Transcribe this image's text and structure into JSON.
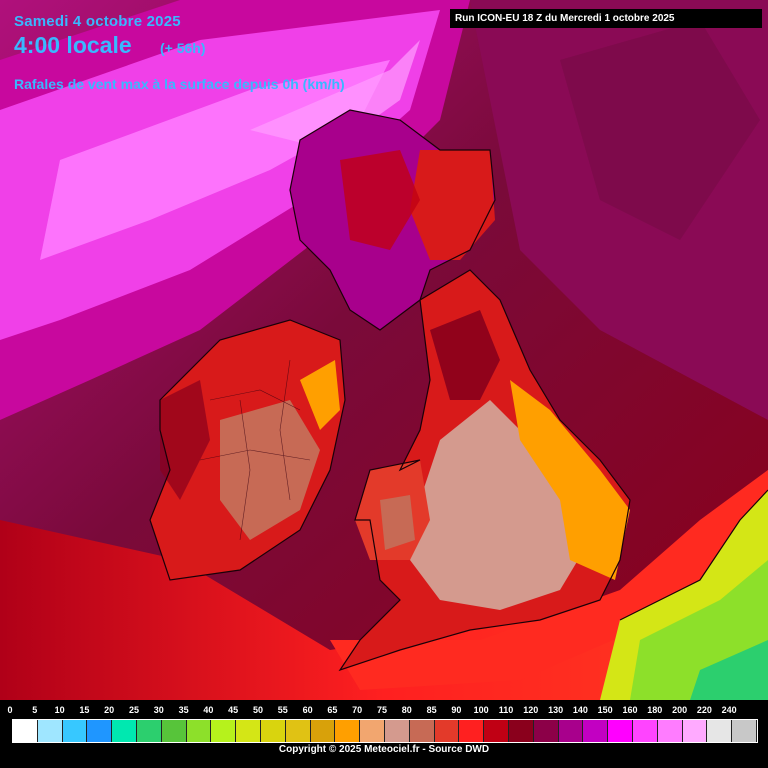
{
  "header": {
    "date": "Samedi 4 octobre 2025",
    "time": "4:00 locale",
    "offset": "(+ 56h)",
    "parameter": "Rafales de vent max à la surface depuis 0h (km/h)",
    "run": "Run ICON-EU 18 Z du Mercredi 1 octobre 2025"
  },
  "legend": {
    "labels": [
      "0",
      "5",
      "10",
      "15",
      "20",
      "25",
      "30",
      "35",
      "40",
      "45",
      "50",
      "55",
      "60",
      "65",
      "70",
      "75",
      "80",
      "85",
      "90",
      "100",
      "110",
      "120",
      "130",
      "140",
      "150",
      "160",
      "180",
      "200",
      "220",
      "240"
    ],
    "colors": [
      "#ffffff",
      "#9fe6ff",
      "#37c8ff",
      "#1f96ff",
      "#00e8b0",
      "#2ccf6e",
      "#57c43a",
      "#8de02a",
      "#b6f21c",
      "#d4e616",
      "#d9d40e",
      "#e0c214",
      "#d8a10a",
      "#ff9f00",
      "#f2a66f",
      "#d49a8e",
      "#c76a55",
      "#e33a2a",
      "#ff2020",
      "#c00014",
      "#8a001c",
      "#8c0048",
      "#a8008c",
      "#c200c2",
      "#ff00ff",
      "#ff44ff",
      "#ff7cff",
      "#ffaaff",
      "#e6e6e6",
      "#c8c8c8"
    ]
  },
  "copyright": "Copyright © 2025 Meteociel.fr - Source DWD",
  "map": {
    "colors": {
      "sea_dark": "#7a0a3a",
      "sea_mid": "#8a0a55",
      "magenta_band": "#c8089e",
      "bright_magenta": "#f040e8",
      "pink_band": "#ff7cff",
      "red_land": "#d81a1a",
      "orange_zone": "#ff9f00",
      "salmon_zone": "#d49a8e",
      "green_zone": "#8de02a",
      "coastline": "#1a0008"
    }
  }
}
